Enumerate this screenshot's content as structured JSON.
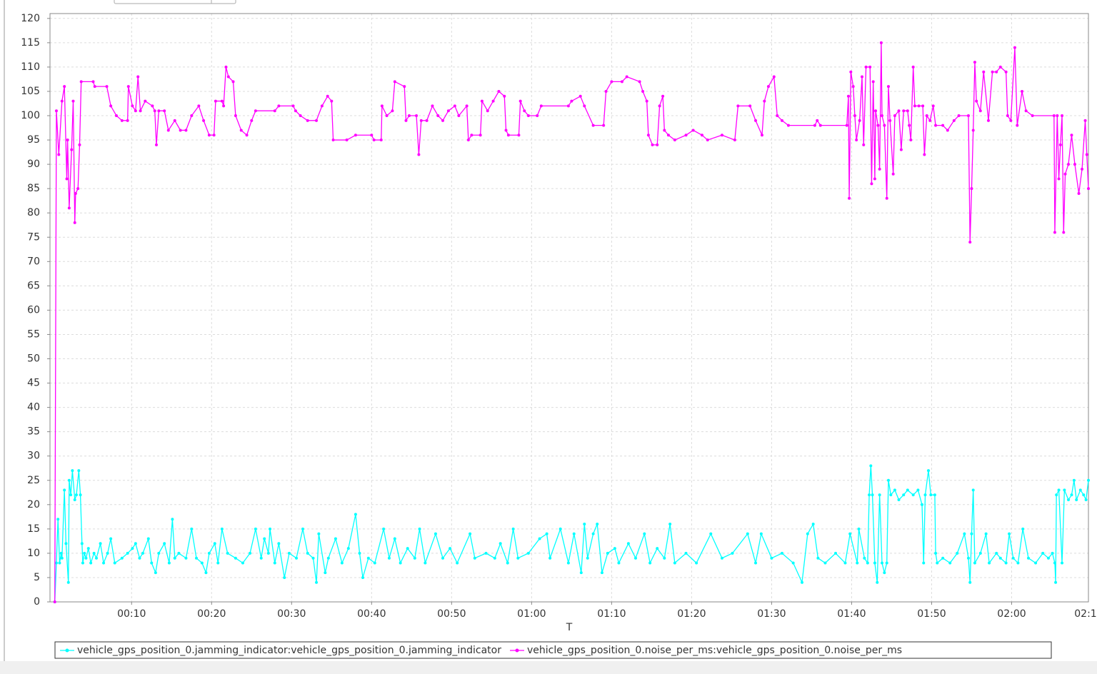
{
  "chart_data": {
    "type": "line",
    "x_label": "T",
    "xlim": [
      -0.2,
      129.6
    ],
    "ylim": [
      0,
      121
    ],
    "grid": true,
    "xticks": [
      {
        "value": 10,
        "label": "00:10"
      },
      {
        "value": 20,
        "label": "00:20"
      },
      {
        "value": 30,
        "label": "00:30"
      },
      {
        "value": 40,
        "label": "00:40"
      },
      {
        "value": 50,
        "label": "00:50"
      },
      {
        "value": 60,
        "label": "01:00"
      },
      {
        "value": 70,
        "label": "01:10"
      },
      {
        "value": 80,
        "label": "01:20"
      },
      {
        "value": 90,
        "label": "01:30"
      },
      {
        "value": 100,
        "label": "01:40"
      },
      {
        "value": 110,
        "label": "01:50"
      },
      {
        "value": 120,
        "label": "02:00"
      },
      {
        "value": 130,
        "label": "02:1"
      }
    ],
    "yticks": [
      0,
      5,
      10,
      15,
      20,
      25,
      30,
      35,
      40,
      45,
      50,
      55,
      60,
      65,
      70,
      75,
      80,
      85,
      90,
      95,
      100,
      105,
      110,
      115,
      120
    ],
    "series": [
      {
        "name": "vehicle_gps_position_0.jamming_indicator:vehicle_gps_position_0.jamming_indicator",
        "color": "#00ffff",
        "x": [
          0.4,
          0.6,
          0.8,
          1.0,
          1.2,
          1.3,
          1.6,
          1.8,
          2.1,
          2.2,
          2.4,
          2.6,
          2.9,
          3.1,
          3.4,
          3.6,
          3.8,
          3.9,
          4.1,
          4.3,
          4.6,
          4.9,
          5.3,
          5.6,
          6.1,
          6.5,
          7.0,
          7.4,
          7.9,
          8.8,
          9.5,
          10.1,
          10.5,
          11.0,
          11.4,
          12.1,
          12.5,
          13.0,
          13.4,
          14.1,
          14.7,
          15.1,
          15.4,
          15.9,
          16.8,
          17.5,
          18.1,
          18.8,
          19.3,
          19.7,
          20.4,
          20.8,
          21.3,
          22.0,
          23.0,
          23.9,
          24.8,
          25.5,
          26.2,
          26.6,
          27.1,
          27.3,
          27.9,
          28.4,
          29.1,
          29.7,
          30.6,
          31.4,
          32.0,
          32.7,
          33.1,
          33.4,
          34.2,
          34.6,
          35.5,
          36.3,
          37.1,
          38.0,
          38.5,
          38.9,
          39.6,
          40.4,
          41.5,
          42.2,
          42.9,
          43.6,
          44.5,
          45.4,
          46.0,
          46.7,
          48.0,
          48.9,
          49.8,
          50.7,
          52.3,
          52.9,
          54.3,
          55.4,
          56.1,
          57.0,
          57.7,
          58.3,
          59.6,
          61.0,
          61.9,
          62.3,
          63.6,
          64.6,
          65.3,
          66.2,
          66.6,
          67.0,
          67.7,
          68.2,
          68.8,
          69.5,
          70.4,
          70.9,
          72.1,
          73.0,
          74.1,
          74.8,
          75.7,
          76.6,
          77.3,
          77.9,
          79.3,
          80.6,
          82.4,
          83.8,
          85.1,
          87.0,
          88.0,
          88.7,
          90.0,
          91.3,
          92.7,
          93.8,
          94.5,
          95.2,
          95.8,
          96.7,
          98.0,
          99.2,
          99.8,
          100.7,
          100.9,
          101.6,
          102.0,
          102.2,
          102.4,
          102.6,
          102.9,
          103.2,
          103.5,
          103.8,
          104.1,
          104.4,
          104.6,
          104.9,
          105.4,
          105.9,
          106.5,
          107.0,
          107.7,
          108.3,
          108.8,
          109.0,
          109.2,
          109.6,
          109.9,
          110.4,
          110.5,
          110.7,
          111.4,
          112.3,
          113.2,
          114.1,
          114.6,
          114.8,
          115.0,
          115.2,
          115.4,
          116.1,
          116.8,
          117.2,
          118.1,
          118.6,
          119.3,
          119.7,
          120.2,
          120.8,
          121.4,
          122.1,
          123.0,
          123.9,
          124.6,
          125.1,
          125.4,
          125.5,
          125.6,
          125.9,
          126.3,
          126.6,
          127.1,
          127.5,
          127.8,
          128.1,
          128.6,
          129.0,
          129.3,
          129.6
        ],
        "values": [
          0,
          8,
          17,
          8,
          10,
          9,
          23,
          12,
          4,
          25,
          22,
          27,
          21,
          22,
          27,
          22,
          12,
          8,
          10,
          9,
          11,
          8,
          10,
          9,
          12,
          8,
          10,
          13,
          8,
          9,
          10,
          11,
          12,
          9,
          10,
          13,
          8,
          6,
          10,
          12,
          8,
          17,
          9,
          10,
          9,
          15,
          9,
          8,
          6,
          10,
          12,
          8,
          15,
          10,
          9,
          8,
          10,
          15,
          9,
          13,
          10,
          15,
          8,
          12,
          5,
          10,
          9,
          15,
          10,
          9,
          4,
          14,
          6,
          9,
          13,
          8,
          11,
          18,
          10,
          5,
          9,
          8,
          15,
          9,
          13,
          8,
          11,
          9,
          15,
          8,
          14,
          9,
          11,
          8,
          14,
          9,
          10,
          9,
          12,
          8,
          15,
          9,
          10,
          13,
          14,
          9,
          15,
          8,
          14,
          6,
          16,
          9,
          14,
          16,
          6,
          10,
          11,
          8,
          12,
          9,
          14,
          8,
          11,
          9,
          16,
          8,
          10,
          8,
          14,
          9,
          10,
          14,
          8,
          14,
          9,
          10,
          8,
          4,
          14,
          16,
          9,
          8,
          10,
          8,
          14,
          8,
          15,
          9,
          8,
          22,
          28,
          22,
          8,
          4,
          22,
          8,
          6,
          8,
          25,
          22,
          23,
          21,
          22,
          23,
          22,
          23,
          20,
          8,
          22,
          27,
          22,
          22,
          10,
          8,
          9,
          8,
          10,
          14,
          9,
          4,
          14,
          23,
          8,
          10,
          14,
          8,
          10,
          9,
          8,
          14,
          9,
          8,
          15,
          9,
          8,
          10,
          9,
          10,
          8,
          4,
          22,
          23,
          8,
          23,
          21,
          22,
          25,
          21,
          23,
          22,
          21,
          25
        ]
      },
      {
        "name": "vehicle_gps_position_0.noise_per_ms:vehicle_gps_position_0.noise_per_ms",
        "color": "#ff00ff",
        "x": [
          0.4,
          0.6,
          0.9,
          1.3,
          1.6,
          1.9,
          2.0,
          2.2,
          2.5,
          2.7,
          2.9,
          3.0,
          3.3,
          3.5,
          3.7,
          5.2,
          5.4,
          6.9,
          7.4,
          8.1,
          8.8,
          9.5,
          9.6,
          10.1,
          10.5,
          10.8,
          11.1,
          11.7,
          12.6,
          12.9,
          13.1,
          13.4,
          14.1,
          14.6,
          15.4,
          16.1,
          16.8,
          17.5,
          18.4,
          19.0,
          19.7,
          20.3,
          20.5,
          21.3,
          21.5,
          21.8,
          22.1,
          22.7,
          23.0,
          23.7,
          24.4,
          25.0,
          25.5,
          27.9,
          28.4,
          30.2,
          30.5,
          31.1,
          32.0,
          33.1,
          33.8,
          34.5,
          35.0,
          35.2,
          36.9,
          38.0,
          40.0,
          40.3,
          41.2,
          41.3,
          41.9,
          42.6,
          42.9,
          44.1,
          44.3,
          44.7,
          45.6,
          45.9,
          46.2,
          46.9,
          47.6,
          48.3,
          48.9,
          49.6,
          50.4,
          50.9,
          51.9,
          52.1,
          52.5,
          53.6,
          53.8,
          54.5,
          55.2,
          55.9,
          56.6,
          56.8,
          57.1,
          58.4,
          58.6,
          59.1,
          59.6,
          60.7,
          61.2,
          64.6,
          65.0,
          66.1,
          66.6,
          67.7,
          69.0,
          69.3,
          70.0,
          71.3,
          71.9,
          73.5,
          73.9,
          74.4,
          74.6,
          75.1,
          75.7,
          76.0,
          76.4,
          76.6,
          77.1,
          77.9,
          79.3,
          80.2,
          81.3,
          82.0,
          83.8,
          85.4,
          85.8,
          87.3,
          88.0,
          88.8,
          89.1,
          89.6,
          90.3,
          90.7,
          91.3,
          92.1,
          95.4,
          95.7,
          96.1,
          99.4,
          99.6,
          99.7,
          99.9,
          100.2,
          100.4,
          100.6,
          101.0,
          101.3,
          101.5,
          101.8,
          102.3,
          102.5,
          102.7,
          102.9,
          103.0,
          103.3,
          103.5,
          103.7,
          103.8,
          104.1,
          104.4,
          104.6,
          104.8,
          105.2,
          105.4,
          105.9,
          106.2,
          106.5,
          107.0,
          107.2,
          107.4,
          107.7,
          107.9,
          108.4,
          108.9,
          109.1,
          109.4,
          109.8,
          110.2,
          110.5,
          111.4,
          112.0,
          112.8,
          113.4,
          114.6,
          114.8,
          115.0,
          115.2,
          115.4,
          115.6,
          116.1,
          116.5,
          117.1,
          117.6,
          118.1,
          118.6,
          119.3,
          119.5,
          119.9,
          120.4,
          120.7,
          121.3,
          121.8,
          122.6,
          125.3,
          125.4,
          125.7,
          125.9,
          126.1,
          126.3,
          126.5,
          126.7,
          127.1,
          127.5,
          127.9,
          128.4,
          128.8,
          129.2,
          129.4,
          129.6
        ],
        "values": [
          0,
          101,
          92,
          103,
          106,
          87,
          95,
          81,
          93,
          103,
          78,
          84,
          85,
          94,
          107,
          107,
          106,
          106,
          102,
          100,
          99,
          99,
          106,
          102,
          101,
          108,
          101,
          103,
          102,
          101,
          94,
          101,
          101,
          97,
          99,
          97,
          97,
          100,
          102,
          99,
          96,
          96,
          103,
          103,
          102,
          110,
          108,
          107,
          100,
          97,
          96,
          99,
          101,
          101,
          102,
          102,
          101,
          100,
          99,
          99,
          102,
          104,
          103,
          95,
          95,
          96,
          96,
          95,
          95,
          102,
          100,
          101,
          107,
          106,
          99,
          100,
          100,
          92,
          99,
          99,
          102,
          100,
          99,
          101,
          102,
          100,
          102,
          95,
          96,
          96,
          103,
          101,
          103,
          105,
          104,
          97,
          96,
          96,
          103,
          101,
          100,
          100,
          102,
          102,
          103,
          104,
          102,
          98,
          98,
          105,
          107,
          107,
          108,
          107,
          105,
          103,
          96,
          94,
          94,
          102,
          104,
          97,
          96,
          95,
          96,
          97,
          96,
          95,
          96,
          95,
          102,
          102,
          99,
          96,
          103,
          106,
          108,
          100,
          99,
          98,
          98,
          99,
          98,
          98,
          104,
          83,
          109,
          106,
          100,
          95,
          99,
          108,
          94,
          110,
          110,
          86,
          107,
          87,
          101,
          98,
          89,
          115,
          100,
          98,
          83,
          106,
          99,
          88,
          100,
          101,
          93,
          101,
          101,
          98,
          95,
          110,
          102,
          102,
          102,
          92,
          100,
          99,
          102,
          98,
          98,
          97,
          99,
          100,
          100,
          74,
          85,
          97,
          111,
          103,
          101,
          109,
          99,
          109,
          109,
          110,
          109,
          100,
          99,
          114,
          98,
          105,
          101,
          100,
          100,
          76,
          100,
          87,
          94,
          100,
          76,
          88,
          90,
          96,
          90,
          84,
          89,
          99,
          92,
          85
        ]
      }
    ]
  }
}
